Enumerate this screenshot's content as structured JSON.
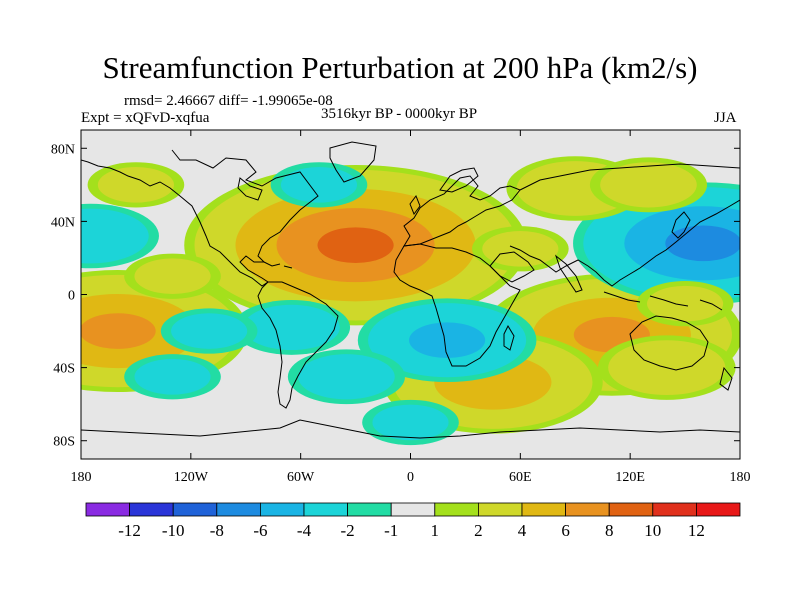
{
  "title": "Streamfunction Perturbation at 200 hPa (km2/s)",
  "stats": "rmsd= 2.46667 diff= -1.99065e-08",
  "experiment": "Expt = xQFvD-xqfua",
  "period": "3516kyr BP - 0000kyr BP",
  "season": "JJA",
  "chart_data": {
    "type": "heatmap",
    "projection": "cylindrical-equidistant",
    "variable": "Streamfunction perturbation",
    "units": "km2/s",
    "level": "200 hPa",
    "lon_range": [
      -180,
      180
    ],
    "lat_range": [
      -90,
      90
    ],
    "x_ticks": [
      {
        "value": -180,
        "label": "180"
      },
      {
        "value": -120,
        "label": "120W"
      },
      {
        "value": -60,
        "label": "60W"
      },
      {
        "value": 0,
        "label": "0"
      },
      {
        "value": 60,
        "label": "60E"
      },
      {
        "value": 120,
        "label": "120E"
      },
      {
        "value": 180,
        "label": "180"
      }
    ],
    "y_ticks": [
      {
        "value": 80,
        "label": "80N"
      },
      {
        "value": 40,
        "label": "40N"
      },
      {
        "value": 0,
        "label": "0"
      },
      {
        "value": -40,
        "label": "40S"
      },
      {
        "value": -80,
        "label": "80S"
      }
    ],
    "contour_levels": [
      -12,
      -10,
      -8,
      -6,
      -4,
      -2,
      -1,
      1,
      2,
      4,
      6,
      8,
      10,
      12
    ],
    "colorbar_labels": [
      "-12",
      "-10",
      "-8",
      "-6",
      "-4",
      "-2",
      "-1",
      "1",
      "2",
      "4",
      "6",
      "8",
      "10",
      "12"
    ],
    "colorbar_colors": [
      "#8a2be2",
      "#2a35d8",
      "#1f62d8",
      "#1d8be0",
      "#1ab4e4",
      "#1cd4d8",
      "#22dca4",
      "#e6e6e6",
      "#a4e01c",
      "#cfd82a",
      "#e0b814",
      "#e89220",
      "#e06212",
      "#e0301c",
      "#e81818"
    ],
    "anomaly_centers": [
      {
        "lon": -30,
        "lat": 27,
        "value": 8
      },
      {
        "lon": -160,
        "lat": -20,
        "value": 6
      },
      {
        "lon": 110,
        "lat": -22,
        "value": 6
      },
      {
        "lon": 45,
        "lat": -48,
        "value": 5
      },
      {
        "lon": 160,
        "lat": 28,
        "value": -6
      },
      {
        "lon": -175,
        "lat": 32,
        "value": -3
      },
      {
        "lon": 20,
        "lat": -25,
        "value": -4
      },
      {
        "lon": -65,
        "lat": -18,
        "value": -2.5
      },
      {
        "lon": -110,
        "lat": -20,
        "value": -2
      },
      {
        "lon": -35,
        "lat": -45,
        "value": -2.5
      },
      {
        "lon": 0,
        "lat": -70,
        "value": -2
      },
      {
        "lon": -50,
        "lat": 60,
        "value": -2
      },
      {
        "lon": 90,
        "lat": 58,
        "value": 3
      },
      {
        "lon": 130,
        "lat": 60,
        "value": 2.5
      },
      {
        "lon": -150,
        "lat": 60,
        "value": 2
      },
      {
        "lon": -130,
        "lat": 10,
        "value": 2
      },
      {
        "lon": 60,
        "lat": 25,
        "value": 2
      },
      {
        "lon": 140,
        "lat": -40,
        "value": 3
      },
      {
        "lon": -130,
        "lat": -45,
        "value": -2
      },
      {
        "lon": 150,
        "lat": -5,
        "value": 2
      }
    ]
  }
}
